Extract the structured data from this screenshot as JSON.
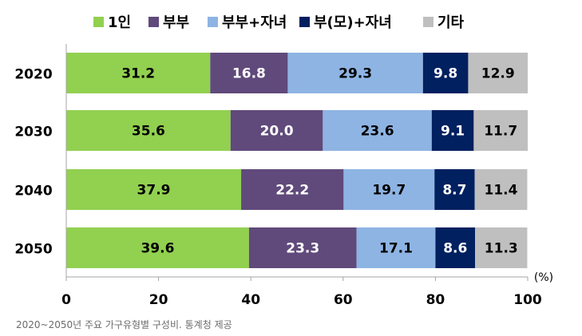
{
  "chart_data": {
    "type": "bar",
    "orientation": "horizontal",
    "stacked": true,
    "categories": [
      "2020",
      "2030",
      "2040",
      "2050"
    ],
    "series": [
      {
        "name": "1인",
        "color": "#92d050",
        "label_color": "#000000",
        "values": [
          31.2,
          35.6,
          37.9,
          39.6
        ]
      },
      {
        "name": "부부",
        "color": "#604a7b",
        "label_color": "#ffffff",
        "values": [
          16.8,
          20.0,
          22.2,
          23.3
        ]
      },
      {
        "name": "부부+자녀",
        "color": "#8eb4e3",
        "label_color": "#000000",
        "values": [
          29.3,
          23.6,
          19.7,
          17.1
        ]
      },
      {
        "name": "부(모)+자녀",
        "color": "#002060",
        "label_color": "#ffffff",
        "values": [
          9.8,
          9.1,
          8.7,
          8.6
        ]
      },
      {
        "name": "기타",
        "color": "#bfbfbf",
        "label_color": "#000000",
        "values": [
          12.9,
          11.7,
          11.4,
          11.3
        ]
      }
    ],
    "xlim": [
      0,
      100
    ],
    "xticks": [
      0,
      20,
      40,
      60,
      80,
      100
    ],
    "xunit": "(%)",
    "legend_position": "top",
    "grid": false
  },
  "caption": "2020~2050년 주요 가구유형별 구성비. 통계청 제공"
}
